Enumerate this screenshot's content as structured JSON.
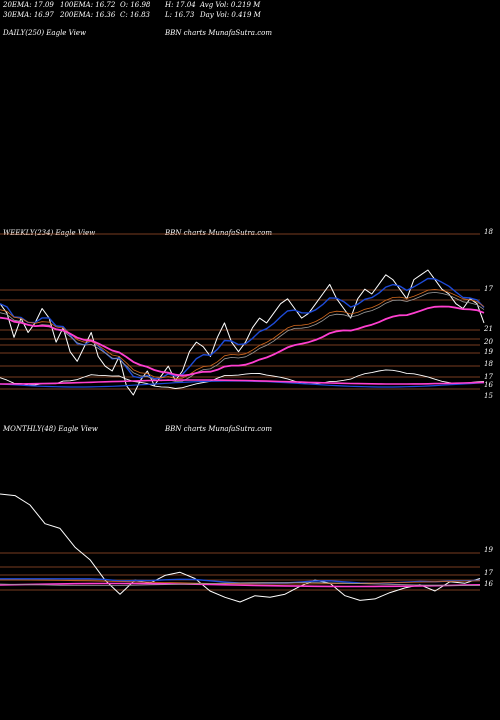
{
  "header": {
    "row1": [
      {
        "label": "20EMA: 17.09"
      },
      {
        "label": "100EMA: 16.72"
      },
      {
        "label": "O: 16.98"
      },
      {
        "label": "H: 17.04"
      },
      {
        "label": "Avg Vol: 0.219 M"
      }
    ],
    "row2": [
      {
        "label": "30EMA: 16.97"
      },
      {
        "label": "200EMA: 16.36"
      },
      {
        "label": "C: 16.83"
      },
      {
        "label": "L: 16.73"
      },
      {
        "label": "Day Vol: 0.419 M"
      }
    ]
  },
  "panels": {
    "daily": {
      "left": "DAILY(250) Eagle  View",
      "center": "BBN  charts MunafaSutra.com"
    },
    "weekly": {
      "left": "WEEKLY(234) Eagle  View",
      "center": "BBN  charts MunafaSutra.com"
    },
    "monthly": {
      "left": "MONTHLY(48) Eagle  View",
      "center": "BBN  charts MunafaSutra.com"
    }
  },
  "colors": {
    "background": "#000000",
    "level_line": "#a0522d",
    "price": "#ffffff",
    "ema_short": "#1e4bd8",
    "ema_long": "#ff3fd0",
    "ema_orange": "#d2691e",
    "ema_gray": "#9a9a9a"
  },
  "chart_data": [
    {
      "type": "line",
      "name": "weekly",
      "axis_ticks": [
        "18",
        "17",
        "21",
        "20",
        "19",
        "18",
        "17",
        "16",
        "15"
      ],
      "series": [
        {
          "name": "price",
          "values": [
            17.3,
            17.1,
            16.6,
            17.0,
            16.7,
            16.9,
            17.2,
            17.0,
            16.5,
            16.8,
            16.3,
            16.1,
            16.4,
            16.7,
            16.2,
            16.0,
            15.9,
            16.2,
            15.6,
            15.4,
            15.7,
            15.9,
            15.6,
            15.8,
            16.0,
            15.7,
            15.9,
            16.3,
            16.5,
            16.4,
            16.2,
            16.6,
            16.9,
            16.5,
            16.3,
            16.5,
            16.8,
            17.0,
            16.9,
            17.1,
            17.3,
            17.4,
            17.2,
            17.0,
            17.1,
            17.3,
            17.5,
            17.7,
            17.4,
            17.2,
            17.0,
            17.4,
            17.6,
            17.5,
            17.7,
            17.9,
            17.8,
            17.6,
            17.4,
            17.8,
            17.9,
            18.0,
            17.8,
            17.6,
            17.5,
            17.3,
            17.2,
            17.4,
            17.3,
            16.9
          ]
        }
      ]
    },
    {
      "type": "line",
      "name": "monthly",
      "axis_ticks": [
        "19",
        "17",
        "16"
      ],
      "series": [
        {
          "name": "price",
          "values": [
            22.5,
            22.4,
            21.8,
            20.6,
            20.3,
            19.1,
            18.3,
            17.0,
            16.1,
            17.0,
            16.8,
            17.3,
            17.5,
            17.1,
            16.3,
            15.9,
            15.6,
            16.0,
            15.9,
            16.1,
            16.6,
            17.0,
            16.8,
            16.0,
            15.7,
            15.8,
            16.2,
            16.5,
            16.7,
            16.3,
            16.9,
            16.8,
            17.1
          ]
        }
      ]
    }
  ]
}
